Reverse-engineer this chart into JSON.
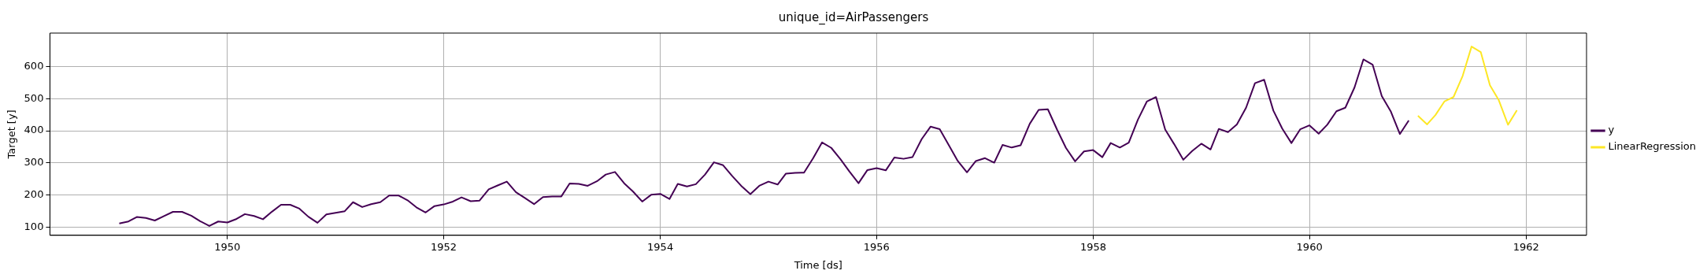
{
  "chart_data": {
    "type": "line",
    "title": "unique_id=AirPassengers",
    "xlabel": "Time [ds]",
    "ylabel": "Target [y]",
    "xlim": [
      "1948-05-12",
      "1962-07-24"
    ],
    "xticks": [
      {
        "value": "1950",
        "label": "1950"
      },
      {
        "value": "1952",
        "label": "1952"
      },
      {
        "value": "1954",
        "label": "1954"
      },
      {
        "value": "1956",
        "label": "1956"
      },
      {
        "value": "1958",
        "label": "1958"
      },
      {
        "value": "1960",
        "label": "1960"
      },
      {
        "value": "1962",
        "label": "1962"
      }
    ],
    "ylim": [
      75,
      704
    ],
    "yticks": [
      100,
      200,
      300,
      400,
      500,
      600
    ],
    "grid": true,
    "legend": "right",
    "line_style": "solid",
    "marker": "none",
    "series": [
      {
        "name": "y",
        "color": "#440154",
        "x": [
          "1949-01",
          "1949-02",
          "1949-03",
          "1949-04",
          "1949-05",
          "1949-06",
          "1949-07",
          "1949-08",
          "1949-09",
          "1949-10",
          "1949-11",
          "1949-12",
          "1950-01",
          "1950-02",
          "1950-03",
          "1950-04",
          "1950-05",
          "1950-06",
          "1950-07",
          "1950-08",
          "1950-09",
          "1950-10",
          "1950-11",
          "1950-12",
          "1951-01",
          "1951-02",
          "1951-03",
          "1951-04",
          "1951-05",
          "1951-06",
          "1951-07",
          "1951-08",
          "1951-09",
          "1951-10",
          "1951-11",
          "1951-12",
          "1952-01",
          "1952-02",
          "1952-03",
          "1952-04",
          "1952-05",
          "1952-06",
          "1952-07",
          "1952-08",
          "1952-09",
          "1952-10",
          "1952-11",
          "1952-12",
          "1953-01",
          "1953-02",
          "1953-03",
          "1953-04",
          "1953-05",
          "1953-06",
          "1953-07",
          "1953-08",
          "1953-09",
          "1953-10",
          "1953-11",
          "1953-12",
          "1954-01",
          "1954-02",
          "1954-03",
          "1954-04",
          "1954-05",
          "1954-06",
          "1954-07",
          "1954-08",
          "1954-09",
          "1954-10",
          "1954-11",
          "1954-12",
          "1955-01",
          "1955-02",
          "1955-03",
          "1955-04",
          "1955-05",
          "1955-06",
          "1955-07",
          "1955-08",
          "1955-09",
          "1955-10",
          "1955-11",
          "1955-12",
          "1956-01",
          "1956-02",
          "1956-03",
          "1956-04",
          "1956-05",
          "1956-06",
          "1956-07",
          "1956-08",
          "1956-09",
          "1956-10",
          "1956-11",
          "1956-12",
          "1957-01",
          "1957-02",
          "1957-03",
          "1957-04",
          "1957-05",
          "1957-06",
          "1957-07",
          "1957-08",
          "1957-09",
          "1957-10",
          "1957-11",
          "1957-12",
          "1958-01",
          "1958-02",
          "1958-03",
          "1958-04",
          "1958-05",
          "1958-06",
          "1958-07",
          "1958-08",
          "1958-09",
          "1958-10",
          "1958-11",
          "1958-12",
          "1959-01",
          "1959-02",
          "1959-03",
          "1959-04",
          "1959-05",
          "1959-06",
          "1959-07",
          "1959-08",
          "1959-09",
          "1959-10",
          "1959-11",
          "1959-12",
          "1960-01",
          "1960-02",
          "1960-03",
          "1960-04",
          "1960-05",
          "1960-06",
          "1960-07",
          "1960-08",
          "1960-09",
          "1960-10",
          "1960-11",
          "1960-12"
        ],
        "values": [
          112,
          118,
          132,
          129,
          121,
          135,
          148,
          148,
          136,
          119,
          104,
          118,
          115,
          126,
          141,
          135,
          125,
          149,
          170,
          170,
          158,
          133,
          114,
          140,
          145,
          150,
          178,
          163,
          172,
          178,
          199,
          199,
          184,
          162,
          146,
          166,
          171,
          180,
          193,
          181,
          183,
          218,
          230,
          242,
          209,
          191,
          172,
          194,
          196,
          196,
          236,
          235,
          229,
          243,
          264,
          272,
          237,
          211,
          180,
          201,
          204,
          188,
          235,
          227,
          234,
          264,
          302,
          293,
          259,
          229,
          203,
          229,
          242,
          233,
          267,
          269,
          270,
          315,
          364,
          347,
          312,
          274,
          237,
          278,
          284,
          277,
          317,
          313,
          318,
          374,
          413,
          405,
          355,
          306,
          271,
          306,
          315,
          301,
          356,
          348,
          355,
          422,
          465,
          467,
          404,
          347,
          305,
          336,
          340,
          318,
          362,
          348,
          363,
          435,
          491,
          505,
          404,
          359,
          310,
          337,
          360,
          342,
          406,
          396,
          420,
          472,
          548,
          559,
          463,
          407,
          362,
          405,
          417,
          391,
          419,
          461,
          472,
          535,
          622,
          606,
          508,
          461,
          390,
          432
        ]
      },
      {
        "name": "LinearRegression",
        "color": "#fde725",
        "x": [
          "1961-01",
          "1961-02",
          "1961-03",
          "1961-04",
          "1961-05",
          "1961-06",
          "1961-07",
          "1961-08",
          "1961-09",
          "1961-10",
          "1961-11",
          "1961-12"
        ],
        "values": [
          447,
          420,
          449,
          492,
          505,
          571,
          662,
          645,
          542,
          495,
          419,
          464
        ]
      }
    ]
  }
}
